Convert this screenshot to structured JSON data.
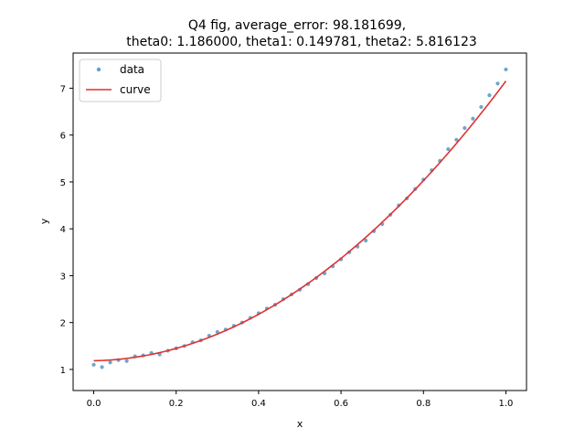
{
  "chart_data": {
    "type": "scatter",
    "title_lines": [
      "Q4 fig, average_error: 98.181699,",
      "theta0: 1.186000, theta1: 0.149781, theta2: 5.816123"
    ],
    "xlabel": "x",
    "ylabel": "y",
    "xlim": [
      -0.05,
      1.05
    ],
    "ylim": [
      0.55,
      7.75
    ],
    "xticks": [
      0.0,
      0.2,
      0.4,
      0.6,
      0.8,
      1.0
    ],
    "xtick_labels": [
      "0.0",
      "0.2",
      "0.4",
      "0.6",
      "0.8",
      "1.0"
    ],
    "yticks": [
      1,
      2,
      3,
      4,
      5,
      6,
      7
    ],
    "ytick_labels": [
      "1",
      "2",
      "3",
      "4",
      "5",
      "6",
      "7"
    ],
    "grid": false,
    "legend_position": "top-left",
    "series": [
      {
        "name": "data",
        "kind": "scatter",
        "color": "#1f77b4",
        "x": [
          0.0,
          0.02,
          0.04,
          0.06,
          0.08,
          0.1,
          0.12,
          0.14,
          0.16,
          0.18,
          0.2,
          0.22,
          0.24,
          0.26,
          0.28,
          0.3,
          0.32,
          0.34,
          0.36,
          0.38,
          0.4,
          0.42,
          0.44,
          0.46,
          0.48,
          0.5,
          0.52,
          0.54,
          0.56,
          0.58,
          0.6,
          0.62,
          0.64,
          0.66,
          0.68,
          0.7,
          0.72,
          0.74,
          0.76,
          0.78,
          0.8,
          0.82,
          0.84,
          0.86,
          0.88,
          0.9,
          0.92,
          0.94,
          0.96,
          0.98,
          1.0
        ],
        "y": [
          1.1,
          1.05,
          1.15,
          1.2,
          1.18,
          1.28,
          1.3,
          1.35,
          1.32,
          1.4,
          1.45,
          1.5,
          1.58,
          1.62,
          1.72,
          1.8,
          1.85,
          1.93,
          2.0,
          2.1,
          2.2,
          2.3,
          2.38,
          2.5,
          2.6,
          2.7,
          2.82,
          2.95,
          3.05,
          3.2,
          3.35,
          3.5,
          3.62,
          3.75,
          3.95,
          4.1,
          4.3,
          4.5,
          4.65,
          4.85,
          5.05,
          5.25,
          5.45,
          5.7,
          5.9,
          6.15,
          6.35,
          6.6,
          6.85,
          7.1,
          7.4
        ]
      },
      {
        "name": "curve",
        "kind": "line",
        "color": "#e03131"
      }
    ],
    "curve_model": {
      "theta0": 1.186,
      "theta1": 0.149781,
      "theta2": 5.816123
    }
  }
}
